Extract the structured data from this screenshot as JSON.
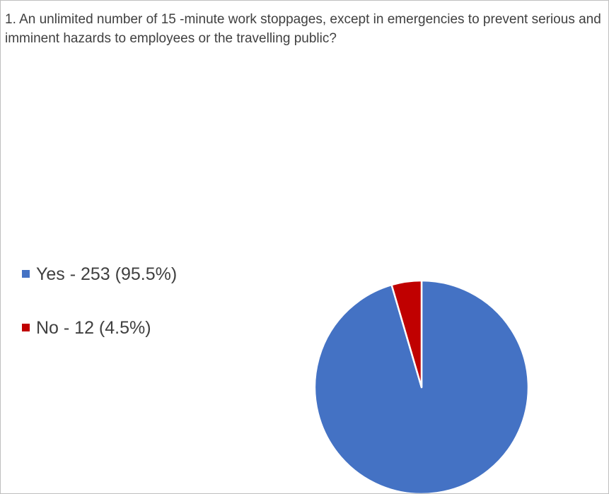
{
  "chart_data": {
    "type": "pie",
    "title": "1. An unlimited number of 15 -minute work stoppages, except in emergencies to prevent serious and imminent hazards to employees or the travelling public?",
    "slices": [
      {
        "label": "Yes - 253 (95.5%)",
        "category": "Yes",
        "count": 253,
        "percent": 95.5,
        "color": "#4472c4"
      },
      {
        "label": "No - 12 (4.5%)",
        "category": "No",
        "count": 12,
        "percent": 4.5,
        "color": "#c00000"
      }
    ],
    "legend_position": "left",
    "start_angle": "12 o'clock",
    "direction": "clockwise"
  }
}
